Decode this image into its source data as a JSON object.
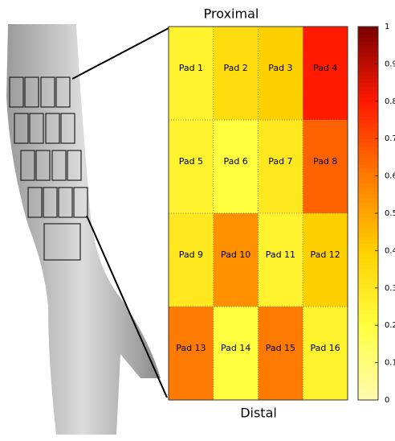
{
  "chart_data": {
    "type": "heatmap",
    "top_label": "Proximal",
    "bottom_label": "Distal",
    "labels": [
      [
        "Pad 1",
        "Pad 2",
        "Pad 3",
        "Pad 4"
      ],
      [
        "Pad 5",
        "Pad 6",
        "Pad 7",
        "Pad 8"
      ],
      [
        "Pad 9",
        "Pad 10",
        "Pad 11",
        "Pad 12"
      ],
      [
        "Pad 13",
        "Pad 14",
        "Pad 15",
        "Pad 16"
      ]
    ],
    "values": [
      [
        0.25,
        0.35,
        0.4,
        0.8
      ],
      [
        0.25,
        0.2,
        0.3,
        0.65
      ],
      [
        0.3,
        0.55,
        0.25,
        0.4
      ],
      [
        0.6,
        0.2,
        0.6,
        0.25
      ]
    ],
    "colormap": [
      "#fffab0",
      "#ffff40",
      "#ffd000",
      "#ff7a00",
      "#ff1a00",
      "#7a0000"
    ],
    "clim": [
      0,
      1
    ],
    "cticks": [
      0,
      0.1,
      0.2,
      0.3,
      0.4,
      0.5,
      0.6,
      0.7,
      0.8,
      0.9,
      1
    ]
  }
}
